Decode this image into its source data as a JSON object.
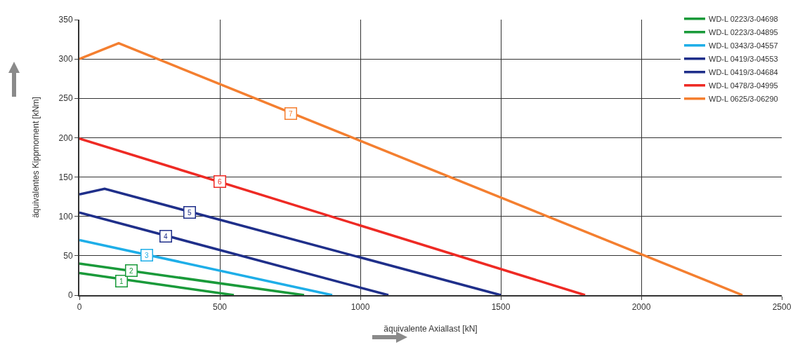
{
  "chart_data": {
    "type": "line",
    "xlabel": "äquivalente Axiallast [kN]",
    "ylabel": "äquivalentes Kippmoment [kNm]",
    "xlim": [
      0,
      2500
    ],
    "xticks": [
      0,
      500,
      1000,
      1500,
      2000,
      2500
    ],
    "ylim": [
      0,
      350
    ],
    "yticks": [
      0,
      50,
      100,
      150,
      200,
      250,
      300,
      350
    ],
    "grid": true,
    "legend": "top right",
    "marker": "none",
    "line_style": "solid",
    "series": [
      {
        "name": "WD-L 0223/3-04698",
        "color": "#1a9a3a",
        "x": [
          0,
          550
        ],
        "values": [
          28,
          0
        ]
      },
      {
        "name": "WD-L 0223/3-04895",
        "color": "#1a9a3a",
        "x": [
          0,
          800
        ],
        "values": [
          40,
          0
        ]
      },
      {
        "name": "WD-L 0343/3-04557",
        "color": "#1eaee8",
        "x": [
          0,
          900
        ],
        "values": [
          70,
          0
        ]
      },
      {
        "name": "WD-L 0419/3-04553",
        "color": "#1f2f8a",
        "x": [
          0,
          1100
        ],
        "values": [
          105,
          0
        ]
      },
      {
        "name": "WD-L 0419/3-04684",
        "color": "#1f2f8a",
        "x": [
          0,
          90,
          1500
        ],
        "values": [
          128,
          135,
          0
        ]
      },
      {
        "name": "WD-L 0478/3-04995",
        "color": "#ee2a24",
        "x": [
          0,
          1800
        ],
        "values": [
          199,
          0
        ]
      },
      {
        "name": "WD-L 0625/3-06290",
        "color": "#f47f30",
        "x": [
          0,
          140,
          2360
        ],
        "values": [
          300,
          320,
          0
        ]
      }
    ],
    "annotations": [
      {
        "text": "1",
        "x": 150,
        "y": 18
      },
      {
        "text": "2",
        "x": 185,
        "y": 31
      },
      {
        "text": "3",
        "x": 240,
        "y": 51
      },
      {
        "text": "4",
        "x": 307,
        "y": 75
      },
      {
        "text": "5",
        "x": 392,
        "y": 105
      },
      {
        "text": "6",
        "x": 500,
        "y": 144
      },
      {
        "text": "7",
        "x": 752,
        "y": 231
      }
    ]
  }
}
